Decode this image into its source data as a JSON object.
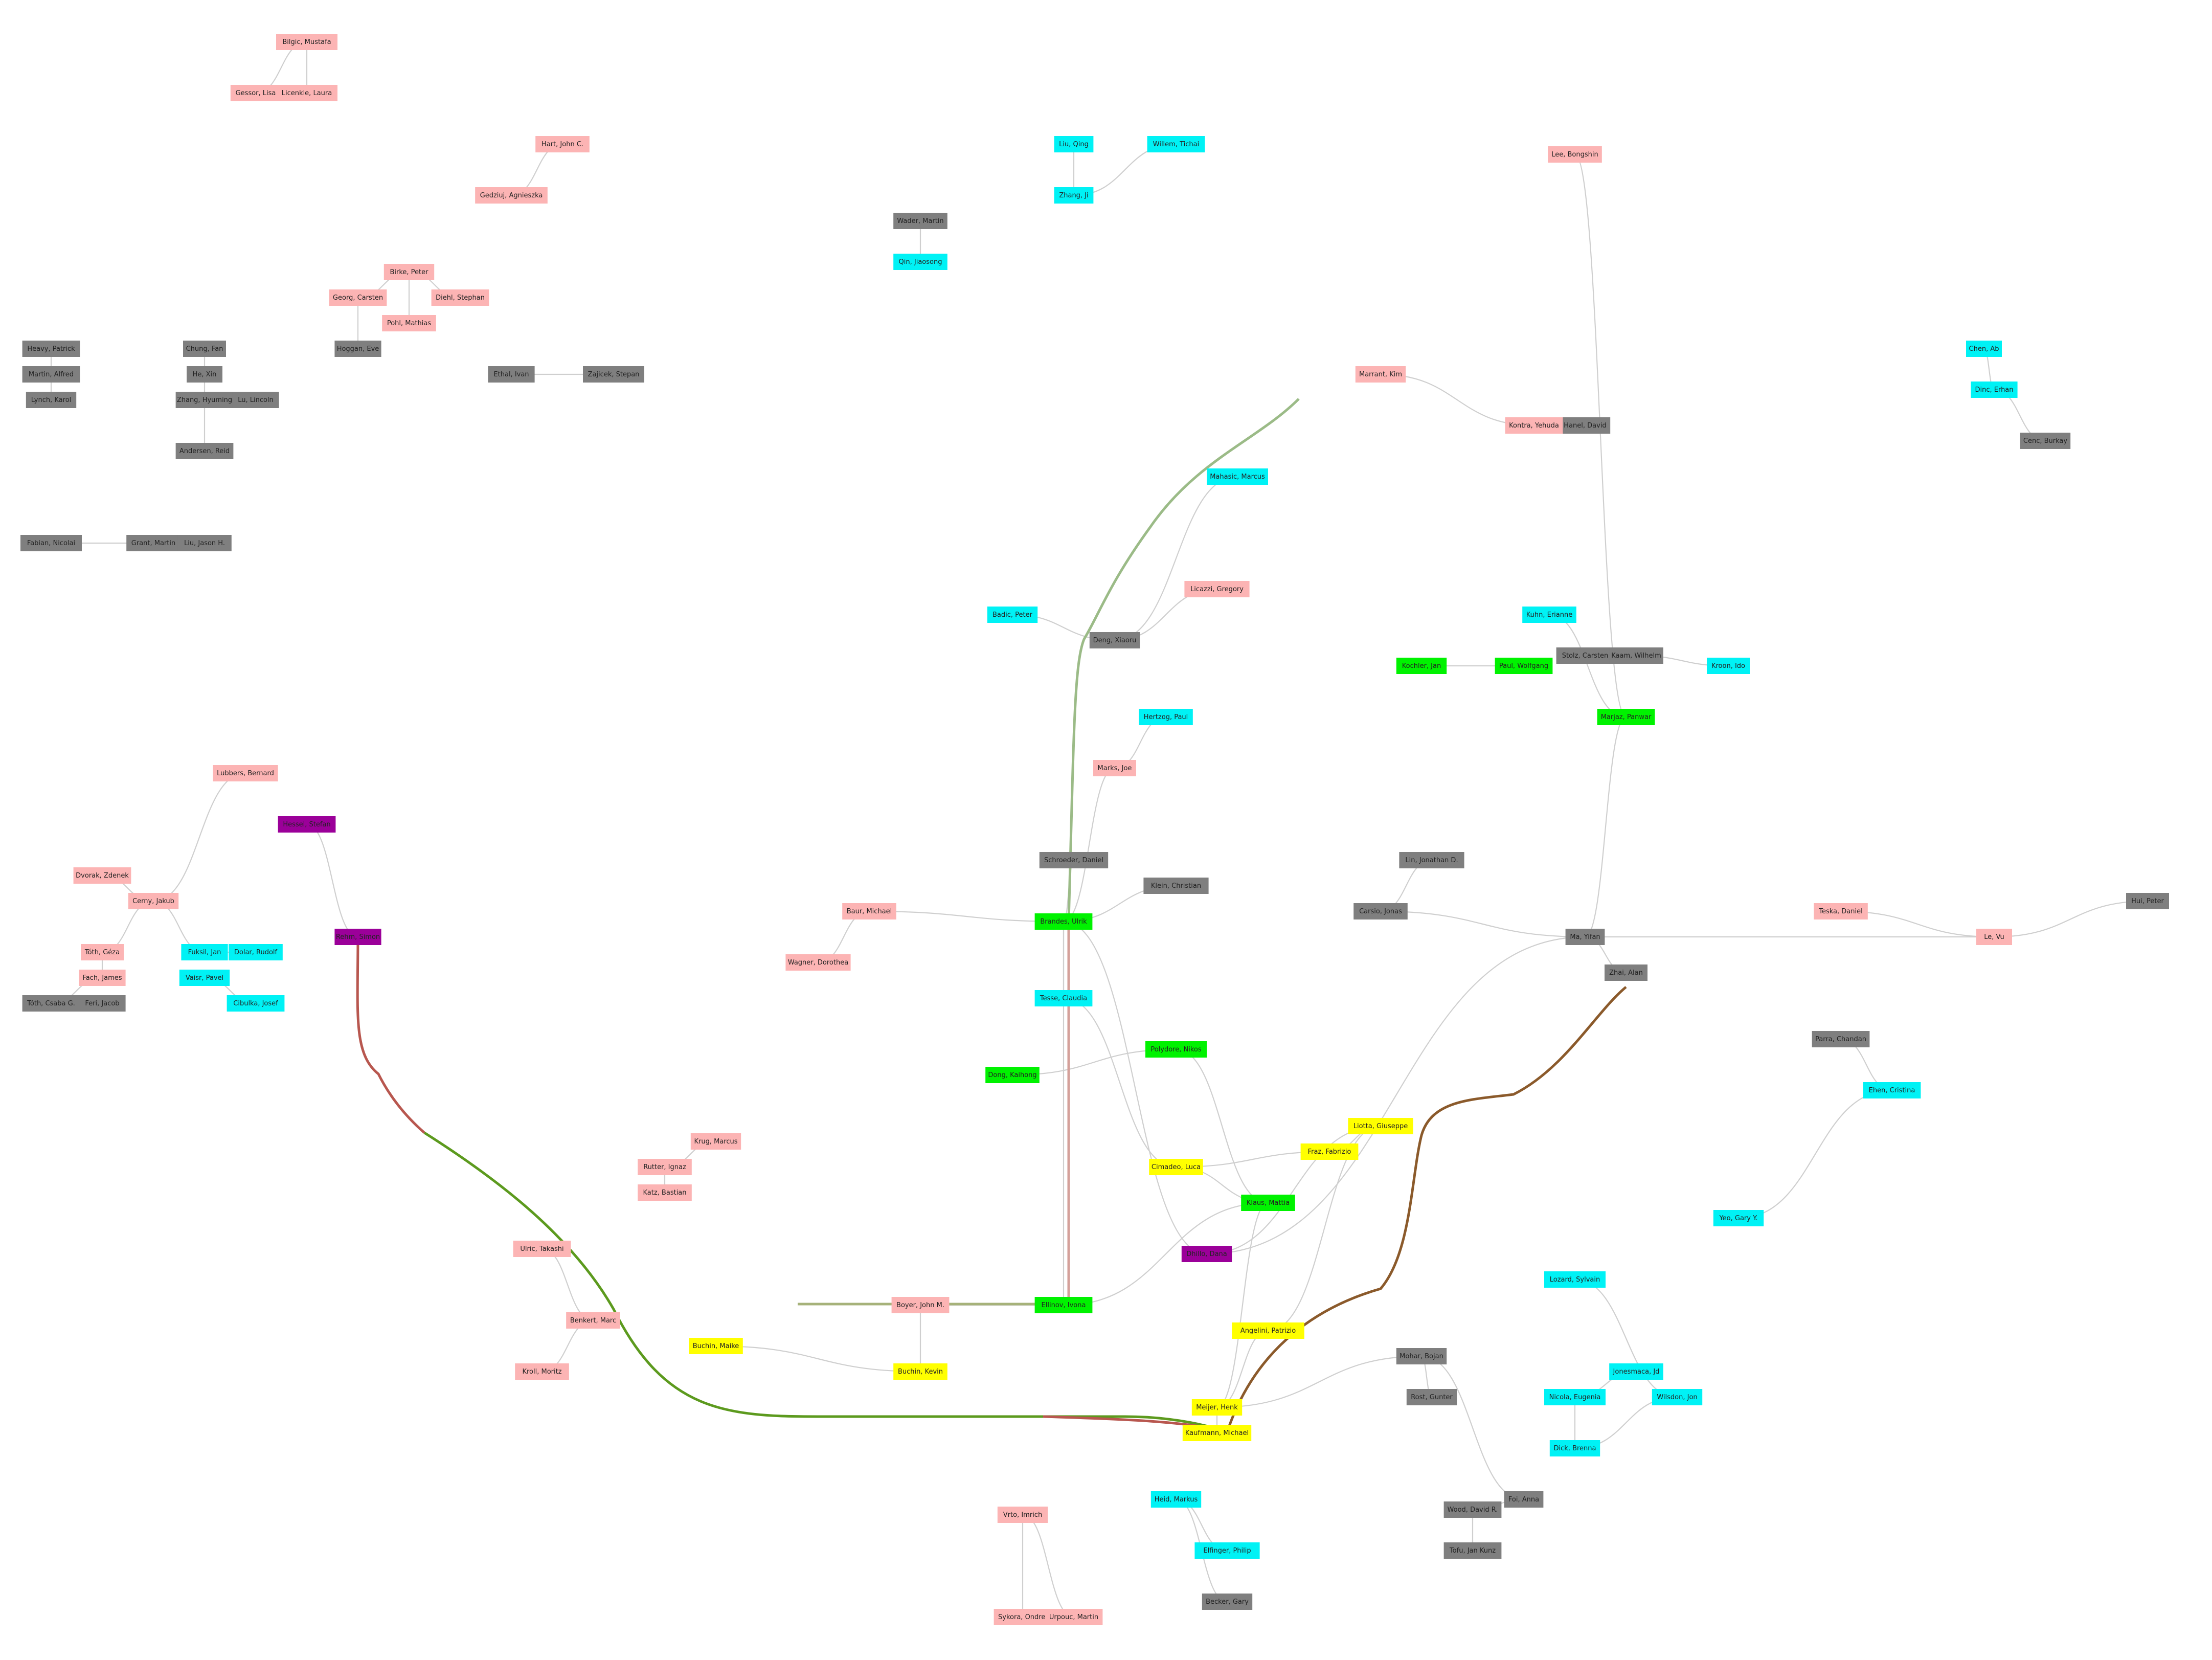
{
  "colors": {
    "pink": "#fcb4b4",
    "gray": "#7f7f7f",
    "magenta": "#9b0099",
    "cyan": "#00f2f5",
    "blue": "#0000ef",
    "green": "#00f200",
    "red": "#ef0000",
    "yellow": "#ffff00"
  },
  "nodes": [
    {
      "id": "n1",
      "label": "Bilgic, Mustafa",
      "c": "pink"
    },
    {
      "id": "n2",
      "label": "Gessor, Lisa",
      "c": "pink"
    },
    {
      "id": "n3",
      "label": "Licenkle, Laura",
      "c": "pink"
    },
    {
      "id": "n4",
      "label": "Hart, John C.",
      "c": "pink"
    },
    {
      "id": "n5",
      "label": "Gedziuj, Agnieszka",
      "c": "pink"
    },
    {
      "id": "n6",
      "label": "Birke, Peter",
      "c": "pink"
    },
    {
      "id": "n7",
      "label": "Georg, Carsten",
      "c": "pink"
    },
    {
      "id": "n8",
      "label": "Pohl, Mathias",
      "c": "pink"
    },
    {
      "id": "n9",
      "label": "Diehl, Stephan",
      "c": "pink"
    },
    {
      "id": "n10",
      "label": "Hoggan, Eve",
      "c": "gray"
    },
    {
      "id": "n11",
      "label": "Chung, Fan",
      "c": "gray"
    },
    {
      "id": "n12",
      "label": "He, Xin",
      "c": "gray"
    },
    {
      "id": "n13",
      "label": "Zhang, Hyuming",
      "c": "gray"
    },
    {
      "id": "n14",
      "label": "Lu, Lincoln",
      "c": "gray"
    },
    {
      "id": "n15",
      "label": "Andersen, Reid",
      "c": "gray"
    },
    {
      "id": "n16",
      "label": "Ethal, Ivan",
      "c": "gray"
    },
    {
      "id": "n17",
      "label": "Zajicek, Stepan",
      "c": "gray"
    },
    {
      "id": "n18",
      "label": "Heavy, Patrick",
      "c": "gray"
    },
    {
      "id": "n19",
      "label": "Martin, Alfred",
      "c": "gray"
    },
    {
      "id": "n20",
      "label": "Lynch, Karol",
      "c": "gray"
    },
    {
      "id": "n21",
      "label": "Fabian, Nicolai",
      "c": "gray"
    },
    {
      "id": "n22",
      "label": "Grant, Martin",
      "c": "gray"
    },
    {
      "id": "n23",
      "label": "Liu, Jason H.",
      "c": "gray"
    },
    {
      "id": "n24",
      "label": "Cerny, Jakub",
      "c": "pink"
    },
    {
      "id": "n25",
      "label": "Tóth, Géza",
      "c": "pink"
    },
    {
      "id": "n26",
      "label": "Fach, James",
      "c": "pink"
    },
    {
      "id": "n27",
      "label": "Tóth, Csaba G.",
      "c": "gray"
    },
    {
      "id": "n28",
      "label": "Feri, Jacob",
      "c": "gray"
    },
    {
      "id": "n29",
      "label": "Fuksil, Jan",
      "c": "cyan"
    },
    {
      "id": "n30",
      "label": "Dolar, Rudolf",
      "c": "cyan"
    },
    {
      "id": "n31",
      "label": "Vaisr, Pavel",
      "c": "cyan"
    },
    {
      "id": "n32",
      "label": "Cibulka, Josef",
      "c": "cyan"
    },
    {
      "id": "n33",
      "label": "Lubbers, Bernard",
      "c": "pink"
    },
    {
      "id": "n34",
      "label": "Dvorak, Zdenek",
      "c": "pink"
    },
    {
      "id": "n35",
      "label": "Liu, Qing",
      "c": "cyan"
    },
    {
      "id": "n36",
      "label": "Zhang, Ji",
      "c": "cyan"
    },
    {
      "id": "n37",
      "label": "Willem, Tichai",
      "c": "cyan"
    },
    {
      "id": "n38",
      "label": "Qin, Jiaosong",
      "c": "cyan"
    },
    {
      "id": "n39",
      "label": "Wader, Martin",
      "c": "gray"
    },
    {
      "id": "n40",
      "label": "Mahasic, Marcus",
      "c": "cyan"
    },
    {
      "id": "n41",
      "label": "Marrant, Kim",
      "c": "pink"
    },
    {
      "id": "n42",
      "label": "Hanel, David",
      "c": "gray"
    },
    {
      "id": "n43",
      "label": "Kontra, Yehuda",
      "c": "pink"
    },
    {
      "id": "n44",
      "label": "Lee, Bongshin",
      "c": "pink"
    },
    {
      "id": "n45",
      "label": "Chen, Ab",
      "c": "cyan"
    },
    {
      "id": "n46",
      "label": "Dinc, Erhan",
      "c": "cyan"
    },
    {
      "id": "n47",
      "label": "Cenc, Burkay",
      "c": "gray"
    },
    {
      "id": "n48",
      "label": "Badic, Peter",
      "c": "cyan"
    },
    {
      "id": "n49",
      "label": "Deng, Xiaoru",
      "c": "gray"
    },
    {
      "id": "n50",
      "label": "Licazzi, Gregory",
      "c": "pink"
    },
    {
      "id": "n51",
      "label": "Kochler, Jan",
      "c": "green"
    },
    {
      "id": "n52",
      "label": "Paul, Wolfgang",
      "c": "green"
    },
    {
      "id": "n53",
      "label": "Stolz, Carsten",
      "c": "gray"
    },
    {
      "id": "n54",
      "label": "Kaam, Wilhelm",
      "c": "gray"
    },
    {
      "id": "n55",
      "label": "Kroon, Ido",
      "c": "cyan"
    },
    {
      "id": "n56",
      "label": "Marjaz, Panwar",
      "c": "green"
    },
    {
      "id": "n57",
      "label": "Kuhn, Erianne",
      "c": "cyan"
    },
    {
      "id": "n58",
      "label": "Hertzog, Paul",
      "c": "cyan"
    },
    {
      "id": "n59",
      "label": "Marks, Joe",
      "c": "pink"
    },
    {
      "id": "n60",
      "label": "Schroeder, Daniel",
      "c": "gray"
    },
    {
      "id": "n61",
      "label": "Brandes, Ulrik",
      "c": "green"
    },
    {
      "id": "n62",
      "label": "Baur, Michael",
      "c": "pink"
    },
    {
      "id": "n63",
      "label": "Wagner, Dorothea",
      "c": "pink"
    },
    {
      "id": "n64",
      "label": "Klein, Christian",
      "c": "gray"
    },
    {
      "id": "n65",
      "label": "Tesse, Claudia",
      "c": "cyan"
    },
    {
      "id": "n66",
      "label": "Lin, Jonathan D.",
      "c": "gray"
    },
    {
      "id": "n67",
      "label": "Carsio, Jonas",
      "c": "gray"
    },
    {
      "id": "n68",
      "label": "Ma, Yifan",
      "c": "gray"
    },
    {
      "id": "n69",
      "label": "Zhai, Alan",
      "c": "gray"
    },
    {
      "id": "n70",
      "label": "Teska, Daniel",
      "c": "pink"
    },
    {
      "id": "n71",
      "label": "Le, Vu",
      "c": "pink"
    },
    {
      "id": "n72",
      "label": "Hui, Peter",
      "c": "gray"
    },
    {
      "id": "n73",
      "label": "Parra, Chandan",
      "c": "gray"
    },
    {
      "id": "n74",
      "label": "Ehen, Cristina",
      "c": "cyan"
    },
    {
      "id": "n75",
      "label": "Yeo, Gary Y.",
      "c": "cyan"
    },
    {
      "id": "n76",
      "label": "Krug, Marcus",
      "c": "pink"
    },
    {
      "id": "n77",
      "label": "Rutter, Ignaz",
      "c": "pink"
    },
    {
      "id": "n78",
      "label": "Katz, Bastian",
      "c": "pink"
    },
    {
      "id": "n79",
      "label": "Ulric, Takashi",
      "c": "pink"
    },
    {
      "id": "n80",
      "label": "Benkert, Marc",
      "c": "pink"
    },
    {
      "id": "n81",
      "label": "Kroll, Moritz",
      "c": "pink"
    },
    {
      "id": "n82",
      "label": "Buchin, Maike",
      "c": "yellow"
    },
    {
      "id": "n83",
      "label": "Buchin, Kevin",
      "c": "yellow"
    },
    {
      "id": "n84",
      "label": "Boyer, John M.",
      "c": "pink"
    },
    {
      "id": "n85",
      "label": "Fraz, Fabrizio",
      "c": "yellow"
    },
    {
      "id": "n86",
      "label": "Liotta, Giuseppe",
      "c": "yellow"
    },
    {
      "id": "n87",
      "label": "Meijer, Henk",
      "c": "yellow"
    },
    {
      "id": "n88",
      "label": "Kaufmann, Michael",
      "c": "yellow"
    },
    {
      "id": "n89",
      "label": "Angelini, Patrizio",
      "c": "yellow"
    },
    {
      "id": "n90",
      "label": "Cimadeo, Luca",
      "c": "yellow"
    },
    {
      "id": "n91",
      "label": "Dhillo, Dana",
      "c": "magenta"
    },
    {
      "id": "n92",
      "label": "Vrto, Imrich",
      "c": "pink"
    },
    {
      "id": "n93",
      "label": "Sykora, Ondrej",
      "c": "pink"
    },
    {
      "id": "n94",
      "label": "Urpouc, Martin",
      "c": "pink"
    },
    {
      "id": "n95",
      "label": "Becker, Gary",
      "c": "gray"
    },
    {
      "id": "n96",
      "label": "Heid, Markus",
      "c": "cyan"
    },
    {
      "id": "n97",
      "label": "Elfinger, Philip",
      "c": "cyan"
    },
    {
      "id": "n98",
      "label": "Rost, Gunter",
      "c": "gray"
    },
    {
      "id": "n99",
      "label": "Mohar, Bojan",
      "c": "gray"
    },
    {
      "id": "n100",
      "label": "Foi, Anna",
      "c": "gray"
    },
    {
      "id": "n101",
      "label": "Wood, David R.",
      "c": "gray"
    },
    {
      "id": "n102",
      "label": "Tofu, Jan Kunz",
      "c": "gray"
    },
    {
      "id": "n103",
      "label": "Lozard, Sylvain",
      "c": "cyan"
    },
    {
      "id": "n104",
      "label": "Wilsdon, Jon",
      "c": "cyan"
    },
    {
      "id": "n105",
      "label": "Dick, Brenna",
      "c": "cyan"
    },
    {
      "id": "n106",
      "label": "Nicola, Eugenia",
      "c": "cyan"
    },
    {
      "id": "n107",
      "label": "Jonesmaca, Jd",
      "c": "cyan"
    },
    {
      "id": "n108",
      "label": "Ellinov, Ivona",
      "c": "green"
    },
    {
      "id": "n109",
      "label": "Klaus, Mattia",
      "c": "green"
    },
    {
      "id": "n110",
      "label": "Polydore, Nikos",
      "c": "green"
    },
    {
      "id": "n111",
      "label": "Dong, Kaihong",
      "c": "green"
    },
    {
      "id": "n112",
      "label": "Rehm, Simon",
      "c": "magenta"
    },
    {
      "id": "n113",
      "label": "Hessel, Stefan",
      "c": "magenta"
    }
  ],
  "edges": [
    [
      "n1",
      "n2"
    ],
    [
      "n1",
      "n3"
    ],
    [
      "n4",
      "n5"
    ],
    [
      "n6",
      "n7"
    ],
    [
      "n6",
      "n8"
    ],
    [
      "n6",
      "n9"
    ],
    [
      "n7",
      "n10"
    ],
    [
      "n11",
      "n12"
    ],
    [
      "n12",
      "n13"
    ],
    [
      "n13",
      "n14"
    ],
    [
      "n13",
      "n15"
    ],
    [
      "n16",
      "n17"
    ],
    [
      "n18",
      "n19"
    ],
    [
      "n19",
      "n20"
    ],
    [
      "n21",
      "n22"
    ],
    [
      "n22",
      "n23"
    ],
    [
      "n24",
      "n25"
    ],
    [
      "n24",
      "n34"
    ],
    [
      "n25",
      "n26"
    ],
    [
      "n26",
      "n27"
    ],
    [
      "n27",
      "n28"
    ],
    [
      "n29",
      "n30"
    ],
    [
      "n31",
      "n32"
    ],
    [
      "n24",
      "n29"
    ],
    [
      "n33",
      "n24"
    ],
    [
      "n35",
      "n36"
    ],
    [
      "n36",
      "n37"
    ],
    [
      "n38",
      "n39"
    ],
    [
      "n40",
      "n49"
    ],
    [
      "n41",
      "n43"
    ],
    [
      "n42",
      "n43"
    ],
    [
      "n44",
      "n56"
    ],
    [
      "n45",
      "n46"
    ],
    [
      "n46",
      "n47"
    ],
    [
      "n48",
      "n49"
    ],
    [
      "n49",
      "n50"
    ],
    [
      "n51",
      "n52"
    ],
    [
      "n53",
      "n54"
    ],
    [
      "n54",
      "n55"
    ],
    [
      "n56",
      "n57"
    ],
    [
      "n58",
      "n59"
    ],
    [
      "n59",
      "n61"
    ],
    [
      "n60",
      "n61"
    ],
    [
      "n61",
      "n62"
    ],
    [
      "n62",
      "n63"
    ],
    [
      "n61",
      "n64"
    ],
    [
      "n61",
      "n65"
    ],
    [
      "n66",
      "n67"
    ],
    [
      "n67",
      "n68"
    ],
    [
      "n68",
      "n69"
    ],
    [
      "n70",
      "n71"
    ],
    [
      "n71",
      "n72"
    ],
    [
      "n73",
      "n74"
    ],
    [
      "n74",
      "n75"
    ],
    [
      "n76",
      "n77"
    ],
    [
      "n77",
      "n78"
    ],
    [
      "n79",
      "n80"
    ],
    [
      "n80",
      "n81"
    ],
    [
      "n82",
      "n83"
    ],
    [
      "n83",
      "n84"
    ],
    [
      "n85",
      "n86"
    ],
    [
      "n86",
      "n89"
    ],
    [
      "n87",
      "n88"
    ],
    [
      "n89",
      "n87"
    ],
    [
      "n90",
      "n85"
    ],
    [
      "n91",
      "n86"
    ],
    [
      "n92",
      "n93"
    ],
    [
      "n92",
      "n94"
    ],
    [
      "n95",
      "n96"
    ],
    [
      "n96",
      "n97"
    ],
    [
      "n98",
      "n99"
    ],
    [
      "n99",
      "n100"
    ],
    [
      "n100",
      "n101"
    ],
    [
      "n101",
      "n102"
    ],
    [
      "n103",
      "n104"
    ],
    [
      "n104",
      "n105"
    ],
    [
      "n105",
      "n106"
    ],
    [
      "n106",
      "n107"
    ],
    [
      "n108",
      "n109"
    ],
    [
      "n109",
      "n110"
    ],
    [
      "n110",
      "n111"
    ],
    [
      "n112",
      "n113"
    ],
    [
      "n65",
      "n90"
    ],
    [
      "n90",
      "n109"
    ],
    [
      "n109",
      "n87"
    ],
    [
      "n84",
      "n108"
    ],
    [
      "n108",
      "n61"
    ],
    [
      "n61",
      "n91"
    ],
    [
      "n91",
      "n68"
    ],
    [
      "n68",
      "n71"
    ],
    [
      "n56",
      "n68"
    ],
    [
      "n87",
      "n99"
    ]
  ]
}
